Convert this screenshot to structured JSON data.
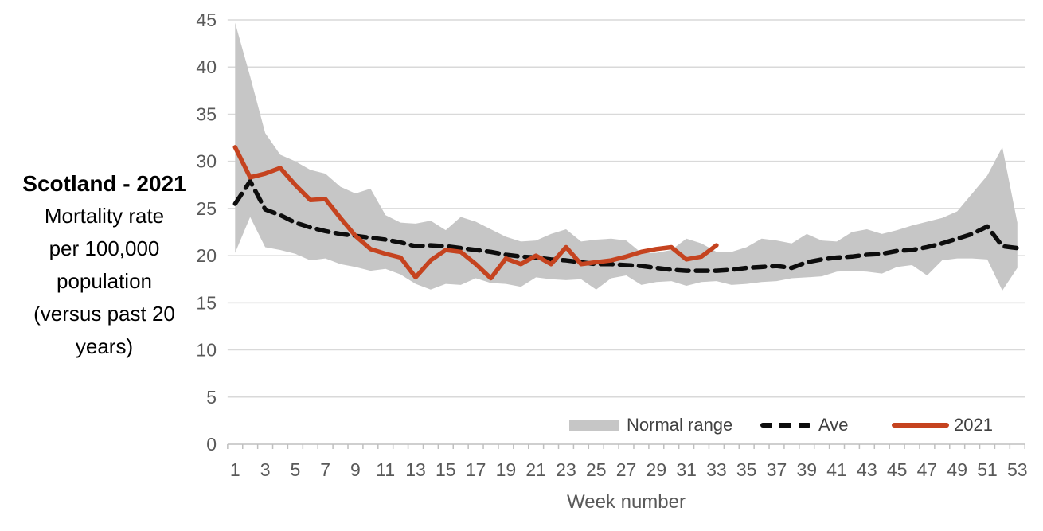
{
  "side_title": {
    "heading": "Scotland - 2021",
    "lines": [
      "Mortality rate",
      "per 100,000",
      "population",
      "(versus past 20",
      "years)"
    ]
  },
  "colors": {
    "band": "#C6C6C6",
    "ave_line": "#0D0D0D",
    "line_2021": "#C5431F",
    "gridline": "#D9D9D9",
    "axis_line": "#BFBFBF",
    "tick_label": "#595959",
    "legend_text": "#404040",
    "title_text": "#000000"
  },
  "chart_data": {
    "type": "line",
    "title": "Scotland - 2021 Mortality rate per 100,000 population (versus past 20 years)",
    "xlabel": "Week number",
    "ylabel": "Mortality rate per 100,000 population",
    "ylim": [
      0,
      45
    ],
    "y_ticks": [
      0,
      5,
      10,
      15,
      20,
      25,
      30,
      35,
      40,
      45
    ],
    "x_tick_labels": [
      1,
      3,
      5,
      7,
      9,
      11,
      13,
      15,
      17,
      19,
      21,
      23,
      25,
      27,
      29,
      31,
      33,
      35,
      37,
      39,
      41,
      43,
      45,
      47,
      49,
      51,
      53
    ],
    "weeks": [
      1,
      2,
      3,
      4,
      5,
      6,
      7,
      8,
      9,
      10,
      11,
      12,
      13,
      14,
      15,
      16,
      17,
      18,
      19,
      20,
      21,
      22,
      23,
      24,
      25,
      26,
      27,
      28,
      29,
      30,
      31,
      32,
      33,
      34,
      35,
      36,
      37,
      38,
      39,
      40,
      41,
      42,
      43,
      44,
      45,
      46,
      47,
      48,
      49,
      50,
      51,
      52,
      53
    ],
    "grid": true,
    "legend_position": "bottom-inside",
    "series": [
      {
        "name": "Normal range",
        "type": "band",
        "color": "#C6C6C6",
        "low": [
          20.3,
          24.1,
          20.9,
          20.6,
          20.2,
          19.5,
          19.7,
          19.1,
          18.8,
          18.4,
          18.6,
          18.0,
          17.0,
          16.4,
          17.0,
          16.9,
          17.6,
          17.1,
          17.0,
          16.7,
          17.7,
          17.5,
          17.4,
          17.5,
          16.4,
          17.6,
          17.9,
          16.9,
          17.2,
          17.3,
          16.8,
          17.2,
          17.3,
          16.9,
          17.0,
          17.2,
          17.3,
          17.6,
          17.7,
          17.8,
          18.3,
          18.4,
          18.3,
          18.1,
          18.8,
          19.0,
          17.9,
          19.5,
          19.7,
          19.7,
          19.6,
          16.3,
          18.7
        ],
        "high": [
          44.7,
          39.0,
          33.0,
          30.7,
          30.0,
          29.1,
          28.7,
          27.3,
          26.6,
          27.1,
          24.3,
          23.5,
          23.4,
          23.7,
          22.7,
          24.1,
          23.6,
          22.8,
          22.0,
          21.5,
          21.6,
          22.3,
          22.8,
          21.5,
          21.7,
          21.8,
          21.6,
          20.3,
          20.3,
          20.6,
          21.8,
          21.3,
          20.4,
          20.4,
          20.9,
          21.8,
          21.6,
          21.3,
          22.3,
          21.6,
          21.5,
          22.5,
          22.8,
          22.3,
          22.7,
          23.2,
          23.6,
          24.0,
          24.7,
          26.6,
          28.5,
          31.5,
          23.5
        ]
      },
      {
        "name": "Ave",
        "type": "line",
        "style": "dashed",
        "color": "#0D0D0D",
        "values": [
          25.5,
          27.9,
          24.9,
          24.3,
          23.5,
          23.0,
          22.6,
          22.3,
          22.1,
          21.9,
          21.7,
          21.4,
          21.0,
          21.1,
          21.0,
          20.8,
          20.6,
          20.4,
          20.1,
          19.9,
          19.8,
          19.6,
          19.5,
          19.3,
          19.1,
          19.1,
          19.0,
          18.9,
          18.7,
          18.5,
          18.4,
          18.4,
          18.4,
          18.5,
          18.7,
          18.8,
          18.9,
          18.7,
          19.3,
          19.6,
          19.8,
          19.9,
          20.1,
          20.2,
          20.5,
          20.6,
          20.9,
          21.3,
          21.8,
          22.3,
          23.1,
          21.0,
          20.8
        ]
      },
      {
        "name": "2021",
        "type": "line",
        "style": "solid",
        "color": "#C5431F",
        "values": [
          31.5,
          28.3,
          28.7,
          29.3,
          27.5,
          25.9,
          26.0,
          24.0,
          22.1,
          20.7,
          20.2,
          19.8,
          17.7,
          19.5,
          20.6,
          20.4,
          19.1,
          17.6,
          19.7,
          19.1,
          20.0,
          19.1,
          20.9,
          19.1,
          19.3,
          19.5,
          19.9,
          20.4,
          20.7,
          20.9,
          19.6,
          19.9,
          21.1
        ]
      }
    ]
  }
}
